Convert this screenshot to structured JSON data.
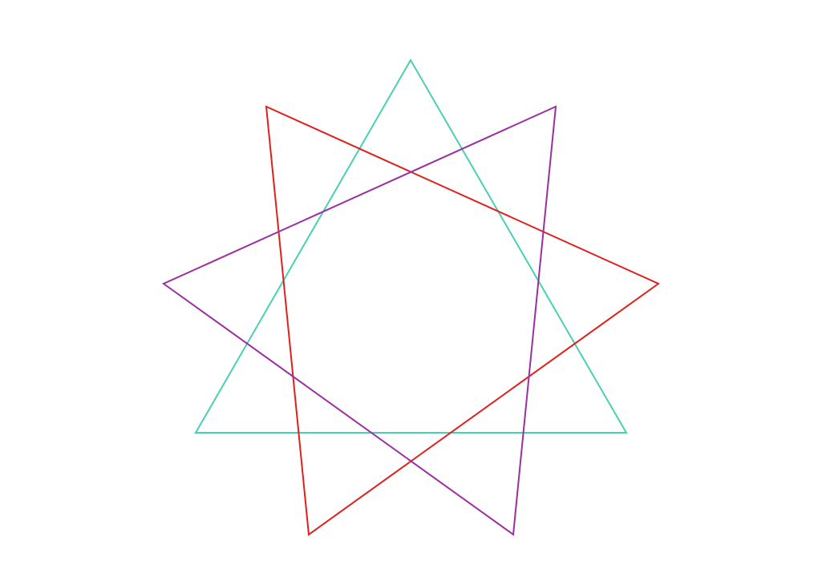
{
  "figure": {
    "kind": "three overlapping triangles forming a nonagram",
    "background_color": "#ffffff",
    "triangles": [
      {
        "id": "teal",
        "color": "#48d1b0"
      },
      {
        "id": "red",
        "color": "#e0201c"
      },
      {
        "id": "purple",
        "color": "#9b2fa0"
      }
    ]
  }
}
